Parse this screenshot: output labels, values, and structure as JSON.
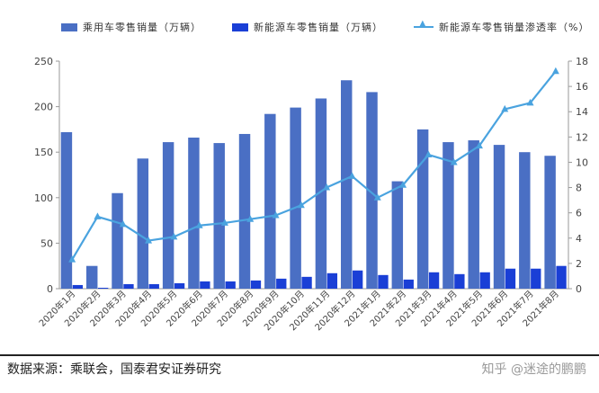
{
  "chart_data": {
    "type": "bar",
    "title": "",
    "categories": [
      "2020年1月",
      "2020年2月",
      "2020年3月",
      "2020年4月",
      "2020年5月",
      "2020年6月",
      "2020年7月",
      "2020年8月",
      "2020年9月",
      "2020年10月",
      "2020年11月",
      "2020年12月",
      "2021年1月",
      "2021年2月",
      "2021年3月",
      "2021年4月",
      "2021年5月",
      "2021年6月",
      "2021年7月",
      "2021年8月"
    ],
    "series": [
      {
        "name": "乘用车零售销量（万辆）",
        "type": "bar",
        "axis": "left",
        "color": "#4a6fc4",
        "values": [
          172,
          25,
          105,
          143,
          161,
          166,
          160,
          170,
          192,
          199,
          209,
          229,
          216,
          118,
          175,
          161,
          163,
          158,
          150,
          146
        ]
      },
      {
        "name": "新能源车零售销量（万辆）",
        "type": "bar",
        "axis": "left",
        "color": "#1a3fd6",
        "values": [
          4,
          1,
          5,
          5,
          6,
          8,
          8,
          9,
          11,
          13,
          17,
          20,
          15,
          10,
          18,
          16,
          18,
          22,
          22,
          25
        ]
      },
      {
        "name": "新能源车零售销量渗透率（%）",
        "type": "line",
        "axis": "right",
        "color": "#4aa3df",
        "values": [
          2.3,
          5.7,
          5.1,
          3.8,
          4.1,
          5.0,
          5.2,
          5.5,
          5.8,
          6.6,
          8.0,
          8.9,
          7.2,
          8.2,
          10.6,
          10.0,
          11.3,
          14.2,
          14.7,
          17.2
        ]
      }
    ],
    "y_left": {
      "min": 0,
      "max": 250,
      "ticks": [
        0,
        50,
        100,
        150,
        200,
        250
      ]
    },
    "y_right": {
      "min": 0,
      "max": 18,
      "ticks": [
        0,
        2,
        4,
        6,
        8,
        10,
        12,
        14,
        16,
        18
      ]
    },
    "legend_position": "top",
    "grid": false
  },
  "legend": {
    "item1": "乘用车零售销量（万辆）",
    "item2": "新能源车零售销量（万辆）",
    "item3": "新能源车零售销量渗透率（%）"
  },
  "footer": {
    "source": "数据来源：乘联会，国泰君安证券研究",
    "watermark": "知乎 @迷途的鹏鹏"
  }
}
